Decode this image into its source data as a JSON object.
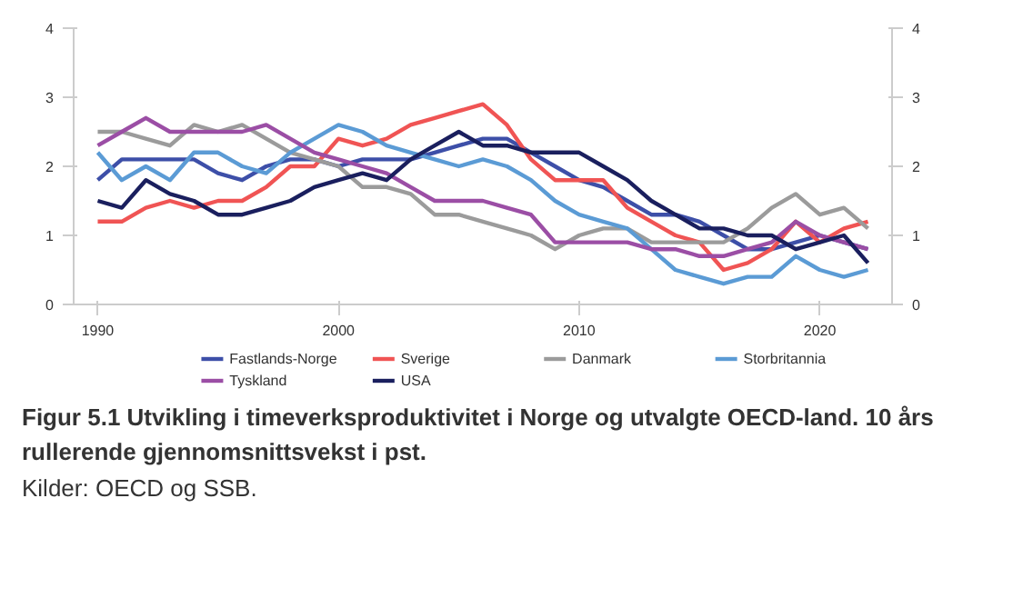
{
  "chart_data": {
    "type": "line",
    "title": "Figur 5.1 Utvikling i timeverksproduktivitet i Norge og utvalgte OECD-land. 10 års rullerende gjennomsnittsvekst i pst.",
    "annotations": [
      "Kilder: OECD og SSB."
    ],
    "x": [
      1990,
      1991,
      1992,
      1993,
      1994,
      1995,
      1996,
      1997,
      1998,
      1999,
      2000,
      2001,
      2002,
      2003,
      2004,
      2005,
      2006,
      2007,
      2008,
      2009,
      2010,
      2011,
      2012,
      2013,
      2014,
      2015,
      2016,
      2017,
      2018,
      2019,
      2020,
      2021,
      2022
    ],
    "series": [
      {
        "name": "Fastlands-Norge",
        "color": "#3d4fa8",
        "values": [
          1.8,
          2.1,
          2.1,
          2.1,
          2.1,
          1.9,
          1.8,
          2.0,
          2.1,
          2.1,
          2.0,
          2.1,
          2.1,
          2.1,
          2.2,
          2.3,
          2.4,
          2.4,
          2.2,
          2.0,
          1.8,
          1.7,
          1.5,
          1.3,
          1.3,
          1.2,
          1.0,
          0.8,
          0.8,
          0.9,
          1.0,
          0.9,
          0.8
        ]
      },
      {
        "name": "Sverige",
        "color": "#f05454",
        "values": [
          1.2,
          1.2,
          1.4,
          1.5,
          1.4,
          1.5,
          1.5,
          1.7,
          2.0,
          2.0,
          2.4,
          2.3,
          2.4,
          2.6,
          2.7,
          2.8,
          2.9,
          2.6,
          2.1,
          1.8,
          1.8,
          1.8,
          1.4,
          1.2,
          1.0,
          0.9,
          0.5,
          0.6,
          0.8,
          1.2,
          0.9,
          1.1,
          1.2
        ]
      },
      {
        "name": "Danmark",
        "color": "#9b9b9b",
        "values": [
          2.5,
          2.5,
          2.4,
          2.3,
          2.6,
          2.5,
          2.6,
          2.4,
          2.2,
          2.1,
          2.0,
          1.7,
          1.7,
          1.6,
          1.3,
          1.3,
          1.2,
          1.1,
          1.0,
          0.8,
          1.0,
          1.1,
          1.1,
          0.9,
          0.9,
          0.9,
          0.9,
          1.1,
          1.4,
          1.6,
          1.3,
          1.4,
          1.1
        ]
      },
      {
        "name": "Storbritannia",
        "color": "#5b9bd5",
        "values": [
          2.2,
          1.8,
          2.0,
          1.8,
          2.2,
          2.2,
          2.0,
          1.9,
          2.2,
          2.4,
          2.6,
          2.5,
          2.3,
          2.2,
          2.1,
          2.0,
          2.1,
          2.0,
          1.8,
          1.5,
          1.3,
          1.2,
          1.1,
          0.8,
          0.5,
          0.4,
          0.3,
          0.4,
          0.4,
          0.7,
          0.5,
          0.4,
          0.5
        ]
      },
      {
        "name": "Tyskland",
        "color": "#9b4ea5",
        "values": [
          2.3,
          2.5,
          2.7,
          2.5,
          2.5,
          2.5,
          2.5,
          2.6,
          2.4,
          2.2,
          2.1,
          2.0,
          1.9,
          1.7,
          1.5,
          1.5,
          1.5,
          1.4,
          1.3,
          0.9,
          0.9,
          0.9,
          0.9,
          0.8,
          0.8,
          0.7,
          0.7,
          0.8,
          0.9,
          1.2,
          1.0,
          0.9,
          0.8
        ]
      },
      {
        "name": "USA",
        "color": "#1a1f5e",
        "values": [
          1.5,
          1.4,
          1.8,
          1.6,
          1.5,
          1.3,
          1.3,
          1.4,
          1.5,
          1.7,
          1.8,
          1.9,
          1.8,
          2.1,
          2.3,
          2.5,
          2.3,
          2.3,
          2.2,
          2.2,
          2.2,
          2.0,
          1.8,
          1.5,
          1.3,
          1.1,
          1.1,
          1.0,
          1.0,
          0.8,
          0.9,
          1.0,
          0.6
        ]
      }
    ],
    "xlim": [
      1989,
      2023
    ],
    "xticks": [
      1990,
      2000,
      2010,
      2020
    ],
    "ylim": [
      0,
      4
    ],
    "yticks": [
      0,
      1,
      2,
      3,
      4
    ],
    "y2lim": [
      0,
      4
    ],
    "y2ticks": [
      0,
      1,
      2,
      3,
      4
    ],
    "grid": false,
    "legend": "bottom",
    "marker": "none",
    "line_style": "solid"
  }
}
